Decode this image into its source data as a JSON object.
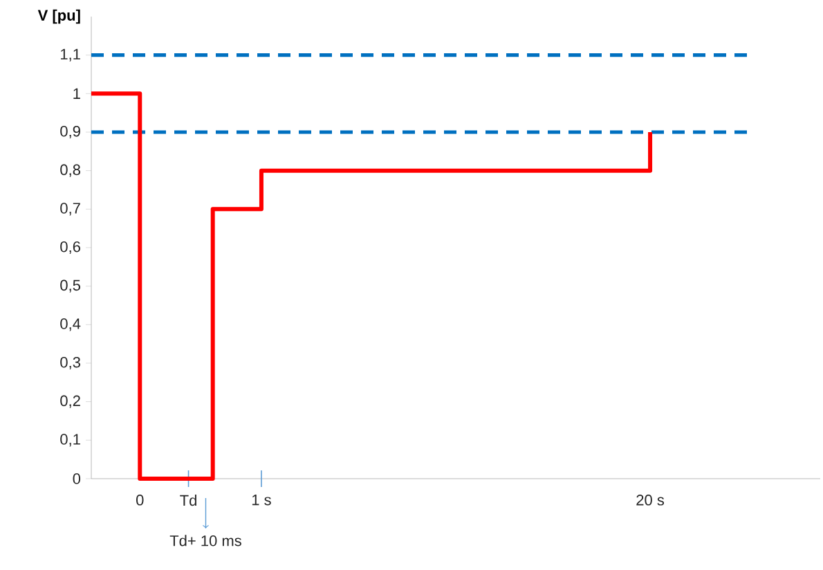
{
  "chart_data": {
    "type": "step",
    "ylabel": "**V [pu]**",
    "categories": [
      null,
      null,
      "0",
      null,
      "Td",
      null,
      null,
      "1 s",
      null,
      null,
      null,
      null,
      null,
      null,
      null,
      null,
      null,
      null,
      null,
      null,
      null,
      null,
      null,
      "20 s",
      null,
      null,
      null,
      null,
      null,
      null,
      null
    ],
    "series": [
      {
        "color": "#ff0000",
        "values": [
          1,
          1,
          0,
          0,
          0,
          0.7,
          0.7,
          0.8,
          0.8,
          0.8,
          0.8,
          0.8,
          0.8,
          0.8,
          0.8,
          0.8,
          0.8,
          0.8,
          0.8,
          0.8,
          0.8,
          0.8,
          0.8,
          0.9,
          null,
          null,
          null,
          null,
          null,
          null,
          null
        ]
      }
    ],
    "ylim": [
      0,
      1.2
    ],
    "yticks": [
      0,
      {
        "value": 0.1,
        "label": "0,1"
      },
      {
        "value": 0.2,
        "label": "0,2"
      },
      {
        "value": 0.3,
        "label": "0,3"
      },
      {
        "value": 0.4,
        "label": "0,4"
      },
      {
        "value": 0.5,
        "label": "0,5"
      },
      {
        "value": 0.6,
        "label": "0,6"
      },
      {
        "value": 0.7,
        "label": "0,7"
      },
      {
        "value": 0.8,
        "label": "0,8"
      },
      {
        "value": 0.9,
        "label": "0,9"
      },
      1,
      {
        "value": 1.1,
        "label": "1,1"
      }
    ],
    "ref_lines": [
      {
        "axis": "y",
        "value": 0.9,
        "color": "#0070c0",
        "line_style": "dashed"
      },
      {
        "axis": "y",
        "value": 1.1,
        "color": "#0070c0",
        "line_style": "dashed"
      }
    ],
    "annotations": [
      "Td+ 10 ms"
    ],
    "grid": false,
    "legend": false,
    "marker": "none",
    "line_style": "solid"
  }
}
